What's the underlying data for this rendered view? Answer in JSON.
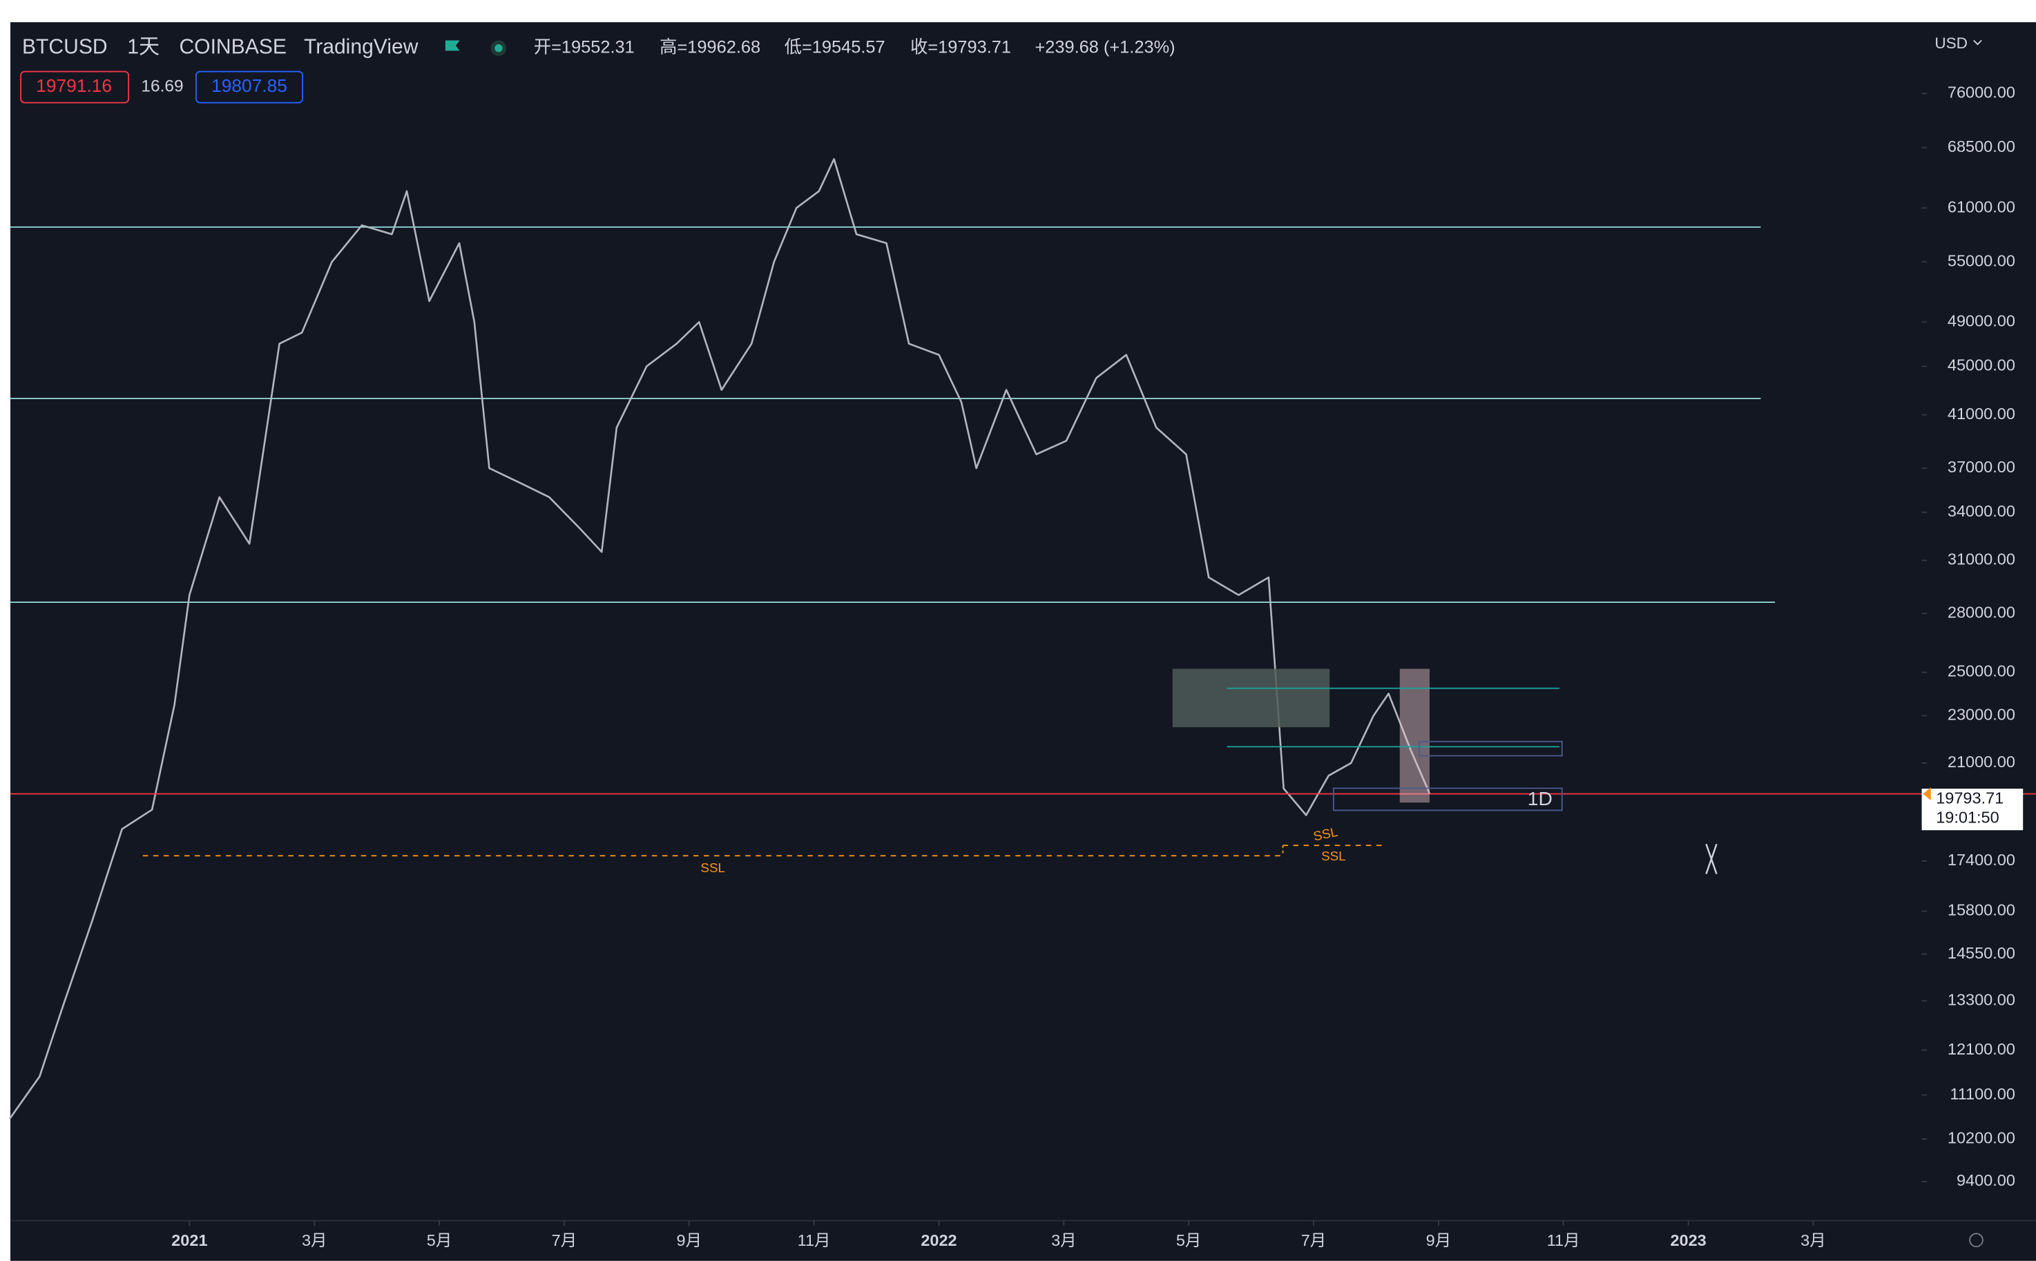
{
  "chart_data": {
    "type": "line",
    "symbol": "BTCUSD",
    "interval": "1天",
    "exchange": "COINBASE",
    "source": "TradingView",
    "ohlc": [
      "开=19552.31",
      "高=19962.68",
      "低=19545.57",
      "收=19793.71",
      "+239.68 (+1.23%)"
    ],
    "bid": "19791.16",
    "spread": "16.69",
    "ask": "19807.85",
    "currency": "USD",
    "last_price": 19793.71,
    "countdown": "19:01:50",
    "annotations": [
      "SSL",
      "SSL",
      "SSL",
      "1D"
    ],
    "log_scale": true,
    "grid": false,
    "levels": [
      58800,
      42300,
      28600
    ],
    "level_color": "#8fd3d4",
    "last_price_color": "#f23645",
    "series": [
      {
        "color": "#b2b5be",
        "x": [
          2020.76,
          2020.8,
          2020.83,
          2020.87,
          2020.91,
          2020.95,
          2020.98,
          2021.0,
          2021.04,
          2021.08,
          2021.12,
          2021.15,
          2021.19,
          2021.23,
          2021.27,
          2021.29,
          2021.32,
          2021.36,
          2021.38,
          2021.4,
          2021.44,
          2021.48,
          2021.52,
          2021.55,
          2021.57,
          2021.61,
          2021.65,
          2021.68,
          2021.71,
          2021.75,
          2021.78,
          2021.81,
          2021.84,
          2021.86,
          2021.89,
          2021.93,
          2021.96,
          2022.0,
          2022.03,
          2022.05,
          2022.09,
          2022.13,
          2022.17,
          2022.21,
          2022.25,
          2022.29,
          2022.33,
          2022.36,
          2022.4,
          2022.44,
          2022.46,
          2022.49,
          2022.52,
          2022.55,
          2022.58,
          2022.6,
          2022.63,
          2022.655
        ],
        "values": [
          10600,
          11500,
          13100,
          15500,
          18500,
          19200,
          23500,
          29000,
          35000,
          32000,
          47000,
          48000,
          55000,
          59000,
          58000,
          63000,
          51000,
          57000,
          49000,
          37000,
          36000,
          35000,
          33000,
          31500,
          40000,
          45000,
          47000,
          49000,
          43000,
          47000,
          55000,
          61000,
          63000,
          67000,
          58000,
          57000,
          47000,
          46000,
          42000,
          37000,
          43000,
          38000,
          39000,
          44000,
          46000,
          40000,
          38000,
          30000,
          29000,
          30000,
          20000,
          19000,
          20500,
          21000,
          23000,
          24000,
          21500,
          19793.71
        ]
      }
    ],
    "xlim": [
      2020.761,
      2023.308
    ],
    "xticks": [
      2021,
      {
        "value": 2021.1667,
        "label": "3月"
      },
      {
        "value": 2021.3333,
        "label": "5月"
      },
      {
        "value": 2021.5,
        "label": "7月"
      },
      {
        "value": 2021.6667,
        "label": "9月"
      },
      {
        "value": 2021.8333,
        "label": "11月"
      },
      2022,
      {
        "value": 2022.1667,
        "label": "3月"
      },
      {
        "value": 2022.3333,
        "label": "5月"
      },
      {
        "value": 2022.5,
        "label": "7月"
      },
      {
        "value": 2022.6667,
        "label": "9月"
      },
      {
        "value": 2022.8333,
        "label": "11月"
      },
      2023,
      {
        "value": 2023.1667,
        "label": "3月"
      }
    ],
    "ylim": [
      8720,
      86500
    ],
    "yticks": [
      {
        "value": 76000,
        "label": "76000.00"
      },
      {
        "value": 68500,
        "label": "68500.00"
      },
      {
        "value": 61000,
        "label": "61000.00"
      },
      {
        "value": 55000,
        "label": "55000.00"
      },
      {
        "value": 49000,
        "label": "49000.00"
      },
      {
        "value": 45000,
        "label": "45000.00"
      },
      {
        "value": 41000,
        "label": "41000.00"
      },
      {
        "value": 37000,
        "label": "37000.00"
      },
      {
        "value": 34000,
        "label": "34000.00"
      },
      {
        "value": 31000,
        "label": "31000.00"
      },
      {
        "value": 28000,
        "label": "28000.00"
      },
      {
        "value": 25000,
        "label": "25000.00"
      },
      {
        "value": 23000,
        "label": "23000.00"
      },
      {
        "value": 21000,
        "label": "21000.00"
      },
      {
        "value": 17400,
        "label": "17400.00"
      },
      {
        "value": 15800,
        "label": "15800.00"
      },
      {
        "value": 14550,
        "label": "14550.00"
      },
      {
        "value": 13300,
        "label": "13300.00"
      },
      {
        "value": 12100,
        "label": "12100.00"
      },
      {
        "value": 11100,
        "label": "11100.00"
      },
      {
        "value": 10200,
        "label": "10200.00"
      },
      {
        "value": 9400,
        "label": "9400.00"
      }
    ]
  }
}
